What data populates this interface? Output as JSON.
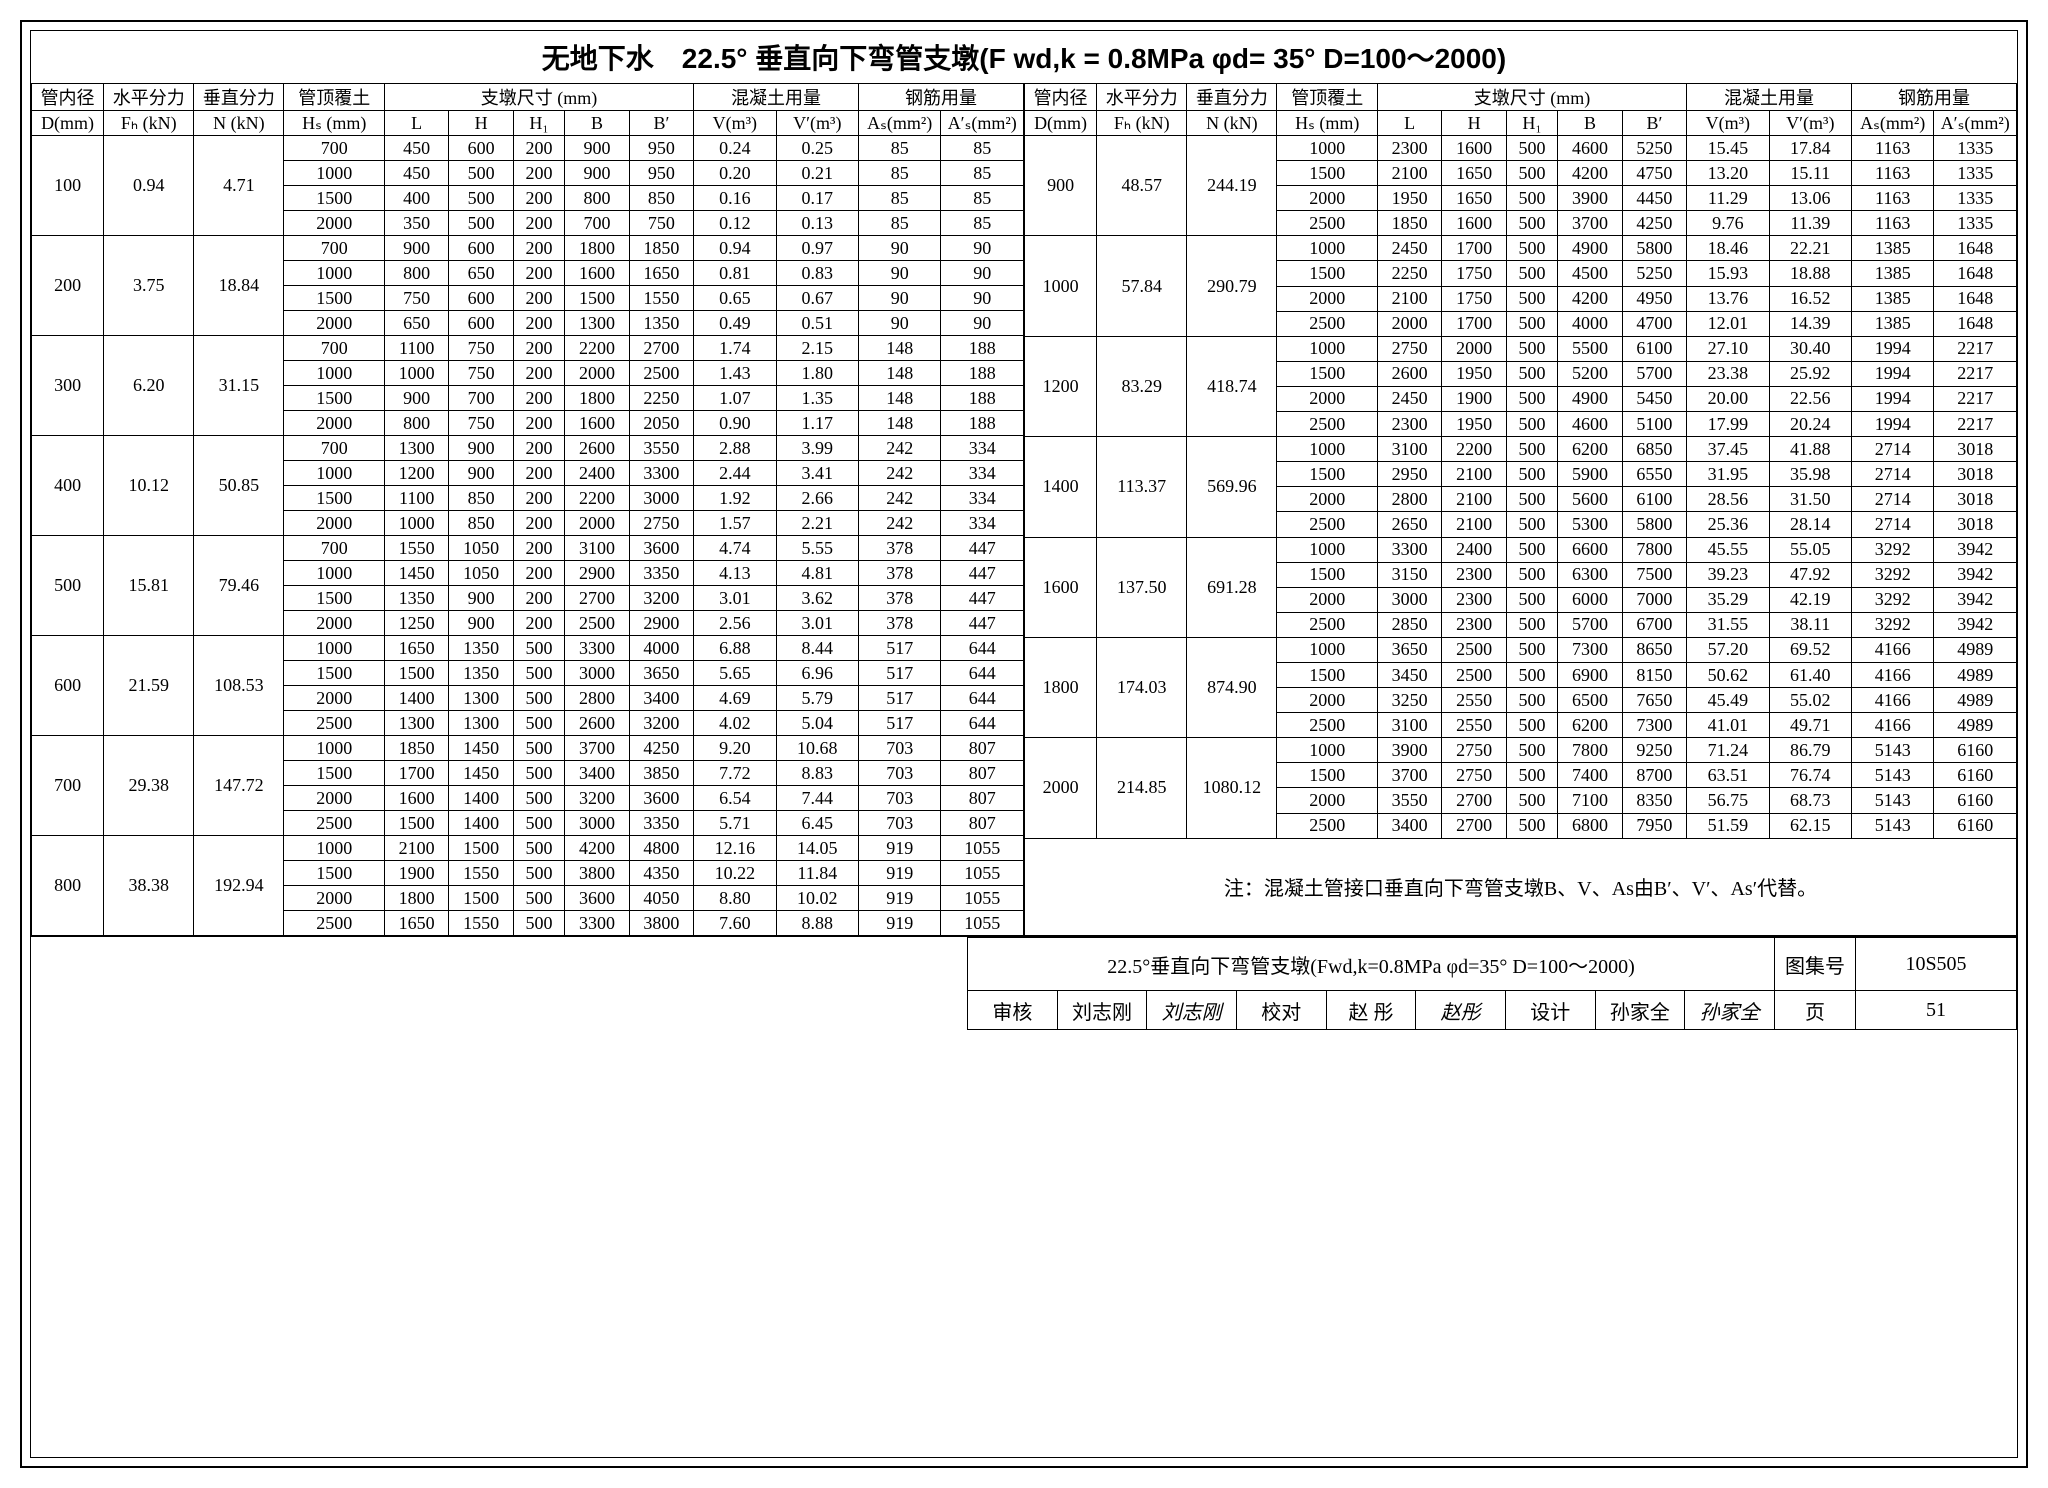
{
  "title": "无地下水　22.5° 垂直向下弯管支墩(F wd,k = 0.8MPa φd= 35° D=100～2000)",
  "headers": {
    "d_inner": "管内径",
    "fh": "水平分力",
    "n": "垂直分力",
    "hs": "管顶覆土",
    "pier_dim": "支墩尺寸 (mm)",
    "conc": "混凝土用量",
    "rebar": "钢筋用量",
    "d_u": "D(mm)",
    "fh_u": "Fₕ (kN)",
    "n_u": "N (kN)",
    "hs_u": "Hₛ (mm)",
    "L": "L",
    "H": "H",
    "H1": "H₁",
    "B": "B",
    "Bp": "B′",
    "V": "V(m³)",
    "Vp": "V′(m³)",
    "As": "Aₛ(mm²)",
    "Asp": "A′ₛ(mm²)"
  },
  "left_groups": [
    {
      "D": "100",
      "Fh": "0.94",
      "N": "4.71",
      "rows": [
        [
          "700",
          "450",
          "600",
          "200",
          "900",
          "950",
          "0.24",
          "0.25",
          "85",
          "85"
        ],
        [
          "1000",
          "450",
          "500",
          "200",
          "900",
          "950",
          "0.20",
          "0.21",
          "85",
          "85"
        ],
        [
          "1500",
          "400",
          "500",
          "200",
          "800",
          "850",
          "0.16",
          "0.17",
          "85",
          "85"
        ],
        [
          "2000",
          "350",
          "500",
          "200",
          "700",
          "750",
          "0.12",
          "0.13",
          "85",
          "85"
        ]
      ]
    },
    {
      "D": "200",
      "Fh": "3.75",
      "N": "18.84",
      "rows": [
        [
          "700",
          "900",
          "600",
          "200",
          "1800",
          "1850",
          "0.94",
          "0.97",
          "90",
          "90"
        ],
        [
          "1000",
          "800",
          "650",
          "200",
          "1600",
          "1650",
          "0.81",
          "0.83",
          "90",
          "90"
        ],
        [
          "1500",
          "750",
          "600",
          "200",
          "1500",
          "1550",
          "0.65",
          "0.67",
          "90",
          "90"
        ],
        [
          "2000",
          "650",
          "600",
          "200",
          "1300",
          "1350",
          "0.49",
          "0.51",
          "90",
          "90"
        ]
      ]
    },
    {
      "D": "300",
      "Fh": "6.20",
      "N": "31.15",
      "rows": [
        [
          "700",
          "1100",
          "750",
          "200",
          "2200",
          "2700",
          "1.74",
          "2.15",
          "148",
          "188"
        ],
        [
          "1000",
          "1000",
          "750",
          "200",
          "2000",
          "2500",
          "1.43",
          "1.80",
          "148",
          "188"
        ],
        [
          "1500",
          "900",
          "700",
          "200",
          "1800",
          "2250",
          "1.07",
          "1.35",
          "148",
          "188"
        ],
        [
          "2000",
          "800",
          "750",
          "200",
          "1600",
          "2050",
          "0.90",
          "1.17",
          "148",
          "188"
        ]
      ]
    },
    {
      "D": "400",
      "Fh": "10.12",
      "N": "50.85",
      "rows": [
        [
          "700",
          "1300",
          "900",
          "200",
          "2600",
          "3550",
          "2.88",
          "3.99",
          "242",
          "334"
        ],
        [
          "1000",
          "1200",
          "900",
          "200",
          "2400",
          "3300",
          "2.44",
          "3.41",
          "242",
          "334"
        ],
        [
          "1500",
          "1100",
          "850",
          "200",
          "2200",
          "3000",
          "1.92",
          "2.66",
          "242",
          "334"
        ],
        [
          "2000",
          "1000",
          "850",
          "200",
          "2000",
          "2750",
          "1.57",
          "2.21",
          "242",
          "334"
        ]
      ]
    },
    {
      "D": "500",
      "Fh": "15.81",
      "N": "79.46",
      "rows": [
        [
          "700",
          "1550",
          "1050",
          "200",
          "3100",
          "3600",
          "4.74",
          "5.55",
          "378",
          "447"
        ],
        [
          "1000",
          "1450",
          "1050",
          "200",
          "2900",
          "3350",
          "4.13",
          "4.81",
          "378",
          "447"
        ],
        [
          "1500",
          "1350",
          "900",
          "200",
          "2700",
          "3200",
          "3.01",
          "3.62",
          "378",
          "447"
        ],
        [
          "2000",
          "1250",
          "900",
          "200",
          "2500",
          "2900",
          "2.56",
          "3.01",
          "378",
          "447"
        ]
      ]
    },
    {
      "D": "600",
      "Fh": "21.59",
      "N": "108.53",
      "rows": [
        [
          "1000",
          "1650",
          "1350",
          "500",
          "3300",
          "4000",
          "6.88",
          "8.44",
          "517",
          "644"
        ],
        [
          "1500",
          "1500",
          "1350",
          "500",
          "3000",
          "3650",
          "5.65",
          "6.96",
          "517",
          "644"
        ],
        [
          "2000",
          "1400",
          "1300",
          "500",
          "2800",
          "3400",
          "4.69",
          "5.79",
          "517",
          "644"
        ],
        [
          "2500",
          "1300",
          "1300",
          "500",
          "2600",
          "3200",
          "4.02",
          "5.04",
          "517",
          "644"
        ]
      ]
    },
    {
      "D": "700",
      "Fh": "29.38",
      "N": "147.72",
      "rows": [
        [
          "1000",
          "1850",
          "1450",
          "500",
          "3700",
          "4250",
          "9.20",
          "10.68",
          "703",
          "807"
        ],
        [
          "1500",
          "1700",
          "1450",
          "500",
          "3400",
          "3850",
          "7.72",
          "8.83",
          "703",
          "807"
        ],
        [
          "2000",
          "1600",
          "1400",
          "500",
          "3200",
          "3600",
          "6.54",
          "7.44",
          "703",
          "807"
        ],
        [
          "2500",
          "1500",
          "1400",
          "500",
          "3000",
          "3350",
          "5.71",
          "6.45",
          "703",
          "807"
        ]
      ]
    },
    {
      "D": "800",
      "Fh": "38.38",
      "N": "192.94",
      "rows": [
        [
          "1000",
          "2100",
          "1500",
          "500",
          "4200",
          "4800",
          "12.16",
          "14.05",
          "919",
          "1055"
        ],
        [
          "1500",
          "1900",
          "1550",
          "500",
          "3800",
          "4350",
          "10.22",
          "11.84",
          "919",
          "1055"
        ],
        [
          "2000",
          "1800",
          "1500",
          "500",
          "3600",
          "4050",
          "8.80",
          "10.02",
          "919",
          "1055"
        ],
        [
          "2500",
          "1650",
          "1550",
          "500",
          "3300",
          "3800",
          "7.60",
          "8.88",
          "919",
          "1055"
        ]
      ]
    }
  ],
  "right_groups": [
    {
      "D": "900",
      "Fh": "48.57",
      "N": "244.19",
      "rows": [
        [
          "1000",
          "2300",
          "1600",
          "500",
          "4600",
          "5250",
          "15.45",
          "17.84",
          "1163",
          "1335"
        ],
        [
          "1500",
          "2100",
          "1650",
          "500",
          "4200",
          "4750",
          "13.20",
          "15.11",
          "1163",
          "1335"
        ],
        [
          "2000",
          "1950",
          "1650",
          "500",
          "3900",
          "4450",
          "11.29",
          "13.06",
          "1163",
          "1335"
        ],
        [
          "2500",
          "1850",
          "1600",
          "500",
          "3700",
          "4250",
          "9.76",
          "11.39",
          "1163",
          "1335"
        ]
      ]
    },
    {
      "D": "1000",
      "Fh": "57.84",
      "N": "290.79",
      "rows": [
        [
          "1000",
          "2450",
          "1700",
          "500",
          "4900",
          "5800",
          "18.46",
          "22.21",
          "1385",
          "1648"
        ],
        [
          "1500",
          "2250",
          "1750",
          "500",
          "4500",
          "5250",
          "15.93",
          "18.88",
          "1385",
          "1648"
        ],
        [
          "2000",
          "2100",
          "1750",
          "500",
          "4200",
          "4950",
          "13.76",
          "16.52",
          "1385",
          "1648"
        ],
        [
          "2500",
          "2000",
          "1700",
          "500",
          "4000",
          "4700",
          "12.01",
          "14.39",
          "1385",
          "1648"
        ]
      ]
    },
    {
      "D": "1200",
      "Fh": "83.29",
      "N": "418.74",
      "rows": [
        [
          "1000",
          "2750",
          "2000",
          "500",
          "5500",
          "6100",
          "27.10",
          "30.40",
          "1994",
          "2217"
        ],
        [
          "1500",
          "2600",
          "1950",
          "500",
          "5200",
          "5700",
          "23.38",
          "25.92",
          "1994",
          "2217"
        ],
        [
          "2000",
          "2450",
          "1900",
          "500",
          "4900",
          "5450",
          "20.00",
          "22.56",
          "1994",
          "2217"
        ],
        [
          "2500",
          "2300",
          "1950",
          "500",
          "4600",
          "5100",
          "17.99",
          "20.24",
          "1994",
          "2217"
        ]
      ]
    },
    {
      "D": "1400",
      "Fh": "113.37",
      "N": "569.96",
      "rows": [
        [
          "1000",
          "3100",
          "2200",
          "500",
          "6200",
          "6850",
          "37.45",
          "41.88",
          "2714",
          "3018"
        ],
        [
          "1500",
          "2950",
          "2100",
          "500",
          "5900",
          "6550",
          "31.95",
          "35.98",
          "2714",
          "3018"
        ],
        [
          "2000",
          "2800",
          "2100",
          "500",
          "5600",
          "6100",
          "28.56",
          "31.50",
          "2714",
          "3018"
        ],
        [
          "2500",
          "2650",
          "2100",
          "500",
          "5300",
          "5800",
          "25.36",
          "28.14",
          "2714",
          "3018"
        ]
      ]
    },
    {
      "D": "1600",
      "Fh": "137.50",
      "N": "691.28",
      "rows": [
        [
          "1000",
          "3300",
          "2400",
          "500",
          "6600",
          "7800",
          "45.55",
          "55.05",
          "3292",
          "3942"
        ],
        [
          "1500",
          "3150",
          "2300",
          "500",
          "6300",
          "7500",
          "39.23",
          "47.92",
          "3292",
          "3942"
        ],
        [
          "2000",
          "3000",
          "2300",
          "500",
          "6000",
          "7000",
          "35.29",
          "42.19",
          "3292",
          "3942"
        ],
        [
          "2500",
          "2850",
          "2300",
          "500",
          "5700",
          "6700",
          "31.55",
          "38.11",
          "3292",
          "3942"
        ]
      ]
    },
    {
      "D": "1800",
      "Fh": "174.03",
      "N": "874.90",
      "rows": [
        [
          "1000",
          "3650",
          "2500",
          "500",
          "7300",
          "8650",
          "57.20",
          "69.52",
          "4166",
          "4989"
        ],
        [
          "1500",
          "3450",
          "2500",
          "500",
          "6900",
          "8150",
          "50.62",
          "61.40",
          "4166",
          "4989"
        ],
        [
          "2000",
          "3250",
          "2550",
          "500",
          "6500",
          "7650",
          "45.49",
          "55.02",
          "4166",
          "4989"
        ],
        [
          "2500",
          "3100",
          "2550",
          "500",
          "6200",
          "7300",
          "41.01",
          "49.71",
          "4166",
          "4989"
        ]
      ]
    },
    {
      "D": "2000",
      "Fh": "214.85",
      "N": "1080.12",
      "rows": [
        [
          "1000",
          "3900",
          "2750",
          "500",
          "7800",
          "9250",
          "71.24",
          "86.79",
          "5143",
          "6160"
        ],
        [
          "1500",
          "3700",
          "2750",
          "500",
          "7400",
          "8700",
          "63.51",
          "76.74",
          "5143",
          "6160"
        ],
        [
          "2000",
          "3550",
          "2700",
          "500",
          "7100",
          "8350",
          "56.75",
          "68.73",
          "5143",
          "6160"
        ],
        [
          "2500",
          "3400",
          "2700",
          "500",
          "6800",
          "7950",
          "51.59",
          "62.15",
          "5143",
          "6160"
        ]
      ]
    }
  ],
  "note": "注：混凝土管接口垂直向下弯管支墩B、V、As由B′、V′、As′代替。",
  "title_block": {
    "main": "22.5°垂直向下弯管支墩(Fwd,k=0.8MPa φd=35° D=100～2000)",
    "atlas_label": "图集号",
    "atlas": "10S505",
    "review_label": "审核",
    "reviewer": "刘志刚",
    "check_label": "校对",
    "checker": "赵 彤",
    "design_label": "设计",
    "designer": "孙家全",
    "page_label": "页",
    "page": "51"
  }
}
